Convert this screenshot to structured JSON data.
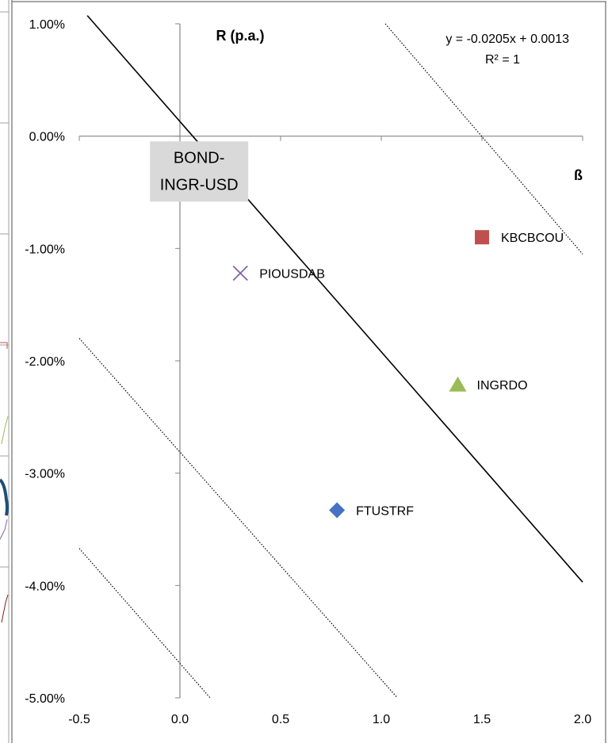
{
  "chart_data": {
    "type": "scatter",
    "title": "R (p.a.)",
    "xlabel": "ß",
    "ylabel": "",
    "xlim": [
      -0.5,
      2.0
    ],
    "ylim": [
      -0.05,
      0.01
    ],
    "x_ticks": [
      "-0.5",
      "0.0",
      "0.5",
      "1.0",
      "1.5",
      "2.0"
    ],
    "y_ticks": [
      "1.00%",
      "0.00%",
      "-1.00%",
      "-2.00%",
      "-3.00%",
      "-4.00%",
      "-5.00%"
    ],
    "grid": false,
    "legend": "none",
    "series": [
      {
        "label": "FTUSTRF",
        "x": 0.78,
        "y": -0.0333,
        "marker": "diamond",
        "color": "#4472c4"
      },
      {
        "label": "KBCBCOU",
        "x": 1.5,
        "y": -0.009,
        "marker": "square",
        "color": "#c0504d"
      },
      {
        "label": "INGRDO",
        "x": 1.38,
        "y": -0.0221,
        "marker": "triangle",
        "color": "#9bbb59"
      },
      {
        "label": "PIOUSDAB",
        "x": 0.3,
        "y": -0.0122,
        "marker": "x",
        "color": "#8064a2"
      }
    ],
    "trendline": {
      "slope": -0.0205,
      "intercept": 0.0013,
      "equation": "y = -0.0205x + 0.0013",
      "r_squared": "R² = 1",
      "color": "#000000"
    },
    "dotted_lines": [
      {
        "p1": [
          1.02,
          0.01
        ],
        "p2": [
          2.0,
          -0.0105
        ]
      },
      {
        "p1": [
          -0.5,
          -0.018
        ],
        "p2": [
          1.08,
          -0.05
        ]
      },
      {
        "p1": [
          -0.5,
          -0.0367
        ],
        "p2": [
          0.15,
          -0.05
        ]
      }
    ],
    "annotations": [
      {
        "text": [
          "BOND-",
          "INGR-USD"
        ],
        "x": 0.04,
        "y": -0.0011
      }
    ]
  }
}
